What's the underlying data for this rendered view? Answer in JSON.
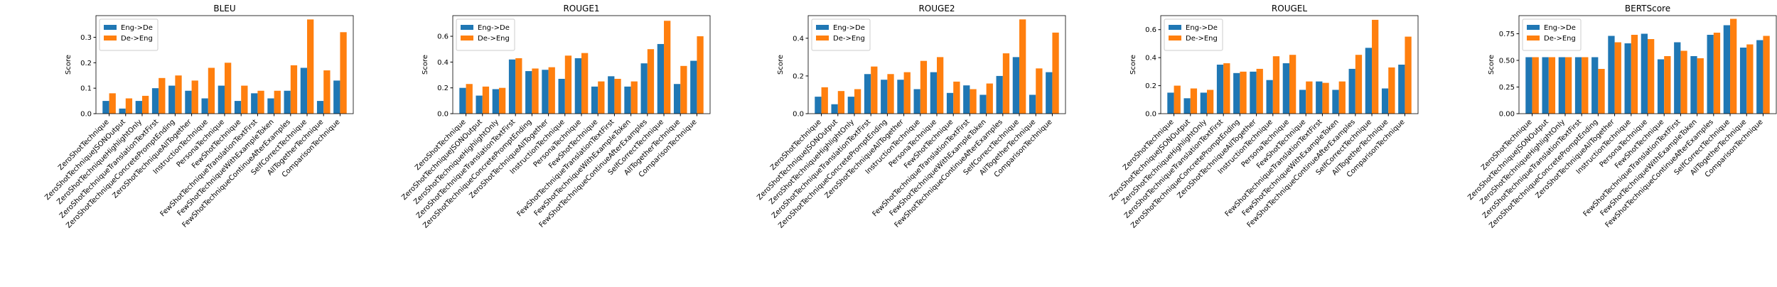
{
  "chart_data": [
    {
      "type": "bar",
      "title": "BLEU",
      "ylabel": "Score",
      "legend": "upper left",
      "categories": [
        "ZeroShotTechnique",
        "ZeroShotTechniqueJSONOutput",
        "ZeroShotTechniqueHighlightOnly",
        "ZeroShotTechniqueTranslationTextFirst",
        "ZeroShotTechniqueConcretePromptEnding",
        "ZeroShotTechniqueAllTogether",
        "InstructionTechnique",
        "PersonaTechnique",
        "FewShotTechnique",
        "FewShotTechniqueTranslationTextFirst",
        "FewShotTechniqueWithExampleToken",
        "FewShotTechniqueContinueAfterExamples",
        "SelfCorrectTechnique",
        "AllTogetherTechnique",
        "ComparisonTechnique"
      ],
      "series": [
        {
          "name": "Eng->De",
          "color": "#1f77b4",
          "values": [
            0.05,
            0.02,
            0.05,
            0.1,
            0.11,
            0.09,
            0.06,
            0.11,
            0.05,
            0.08,
            0.06,
            0.09,
            0.18,
            0.05,
            0.13
          ]
        },
        {
          "name": "De->Eng",
          "color": "#ff7f0e",
          "values": [
            0.08,
            0.06,
            0.07,
            0.14,
            0.15,
            0.13,
            0.18,
            0.2,
            0.11,
            0.09,
            0.09,
            0.19,
            0.37,
            0.17,
            0.32
          ]
        }
      ],
      "ylim": [
        0,
        0.385
      ],
      "yticks": [
        {
          "value": 0,
          "label": "0.0"
        },
        0.1,
        0.2,
        0.3
      ]
    },
    {
      "type": "bar",
      "title": "ROUGE1",
      "ylabel": "Score",
      "legend": "upper left",
      "categories": [
        "ZeroShotTechnique",
        "ZeroShotTechniqueJSONOutput",
        "ZeroShotTechniqueHighlightOnly",
        "ZeroShotTechniqueTranslationTextFirst",
        "ZeroShotTechniqueConcretePromptEnding",
        "ZeroShotTechniqueAllTogether",
        "InstructionTechnique",
        "PersonaTechnique",
        "FewShotTechnique",
        "FewShotTechniqueTranslationTextFirst",
        "FewShotTechniqueWithExampleToken",
        "FewShotTechniqueContinueAfterExamples",
        "SelfCorrectTechnique",
        "AllTogetherTechnique",
        "ComparisonTechnique"
      ],
      "series": [
        {
          "name": "Eng->De",
          "color": "#1f77b4",
          "values": [
            0.2,
            0.14,
            0.19,
            0.42,
            0.33,
            0.34,
            0.27,
            0.43,
            0.21,
            0.29,
            0.21,
            0.39,
            0.54,
            0.23,
            0.41
          ]
        },
        {
          "name": "De->Eng",
          "color": "#ff7f0e",
          "values": [
            0.23,
            0.21,
            0.2,
            0.43,
            0.35,
            0.36,
            0.45,
            0.47,
            0.25,
            0.27,
            0.25,
            0.5,
            0.72,
            0.37,
            0.6
          ]
        }
      ],
      "ylim": [
        0,
        0.76
      ],
      "yticks": [
        {
          "value": 0,
          "label": "0.0"
        },
        0.2,
        0.4,
        0.6
      ]
    },
    {
      "type": "bar",
      "title": "ROUGE2",
      "ylabel": "Score",
      "legend": "upper left",
      "categories": [
        "ZeroShotTechnique",
        "ZeroShotTechniqueJSONOutput",
        "ZeroShotTechniqueHighlightOnly",
        "ZeroShotTechniqueTranslationTextFirst",
        "ZeroShotTechniqueConcretePromptEnding",
        "ZeroShotTechniqueAllTogether",
        "InstructionTechnique",
        "PersonaTechnique",
        "FewShotTechnique",
        "FewShotTechniqueTranslationTextFirst",
        "FewShotTechniqueWithExampleToken",
        "FewShotTechniqueContinueAfterExamples",
        "SelfCorrectTechnique",
        "AllTogetherTechnique",
        "ComparisonTechnique"
      ],
      "series": [
        {
          "name": "Eng->De",
          "color": "#1f77b4",
          "values": [
            0.09,
            0.05,
            0.09,
            0.21,
            0.18,
            0.18,
            0.13,
            0.22,
            0.11,
            0.15,
            0.1,
            0.2,
            0.3,
            0.1,
            0.22
          ]
        },
        {
          "name": "De->Eng",
          "color": "#ff7f0e",
          "values": [
            0.14,
            0.12,
            0.13,
            0.25,
            0.21,
            0.22,
            0.28,
            0.3,
            0.17,
            0.13,
            0.16,
            0.32,
            0.5,
            0.24,
            0.43
          ]
        }
      ],
      "ylim": [
        0,
        0.52
      ],
      "yticks": [
        {
          "value": 0,
          "label": "0.0"
        },
        0.2,
        0.4
      ]
    },
    {
      "type": "bar",
      "title": "ROUGEL",
      "ylabel": "Score",
      "legend": "upper left",
      "categories": [
        "ZeroShotTechnique",
        "ZeroShotTechniqueJSONOutput",
        "ZeroShotTechniqueHighlightOnly",
        "ZeroShotTechniqueTranslationTextFirst",
        "ZeroShotTechniqueConcretePromptEnding",
        "ZeroShotTechniqueAllTogether",
        "InstructionTechnique",
        "PersonaTechnique",
        "FewShotTechnique",
        "FewShotTechniqueTranslationTextFirst",
        "FewShotTechniqueWithExampleToken",
        "FewShotTechniqueContinueAfterExamples",
        "SelfCorrectTechnique",
        "AllTogetherTechnique",
        "ComparisonTechnique"
      ],
      "series": [
        {
          "name": "Eng->De",
          "color": "#1f77b4",
          "values": [
            0.15,
            0.11,
            0.15,
            0.35,
            0.29,
            0.3,
            0.24,
            0.36,
            0.17,
            0.23,
            0.17,
            0.32,
            0.47,
            0.18,
            0.35
          ]
        },
        {
          "name": "De->Eng",
          "color": "#ff7f0e",
          "values": [
            0.2,
            0.18,
            0.17,
            0.36,
            0.3,
            0.32,
            0.41,
            0.42,
            0.23,
            0.22,
            0.23,
            0.42,
            0.67,
            0.33,
            0.55
          ]
        }
      ],
      "ylim": [
        0,
        0.7
      ],
      "yticks": [
        {
          "value": 0,
          "label": "0.0"
        },
        0.2,
        0.4,
        0.6
      ]
    },
    {
      "type": "bar",
      "title": "BERTScore",
      "ylabel": "Score",
      "legend": "upper left",
      "categories": [
        "ZeroShotTechnique",
        "ZeroShotTechniqueJSONOutput",
        "ZeroShotTechniqueHighlightOnly",
        "ZeroShotTechniqueTranslationTextFirst",
        "ZeroShotTechniqueConcretePromptEnding",
        "ZeroShotTechniqueAllTogether",
        "InstructionTechnique",
        "PersonaTechnique",
        "FewShotTechnique",
        "FewShotTechniqueTranslationTextFirst",
        "FewShotTechniqueWithExampleToken",
        "FewShotTechniqueContinueAfterExamples",
        "SelfCorrectTechnique",
        "AllTogetherTechnique",
        "ComparisonTechnique"
      ],
      "series": [
        {
          "name": "Eng->De",
          "color": "#1f77b4",
          "values": [
            0.53,
            0.53,
            0.53,
            0.53,
            0.53,
            0.73,
            0.66,
            0.75,
            0.51,
            0.67,
            0.54,
            0.74,
            0.83,
            0.62,
            0.69
          ]
        },
        {
          "name": "De->Eng",
          "color": "#ff7f0e",
          "values": [
            0.53,
            0.53,
            0.53,
            0.53,
            0.42,
            0.67,
            0.74,
            0.7,
            0.54,
            0.59,
            0.52,
            0.76,
            0.89,
            0.65,
            0.73
          ]
        }
      ],
      "ylim": [
        0,
        0.92
      ],
      "yticks": [
        {
          "value": 0,
          "label": "0.00"
        },
        0.25,
        {
          "value": 0.5,
          "label": "0.50"
        },
        0.75
      ]
    }
  ]
}
